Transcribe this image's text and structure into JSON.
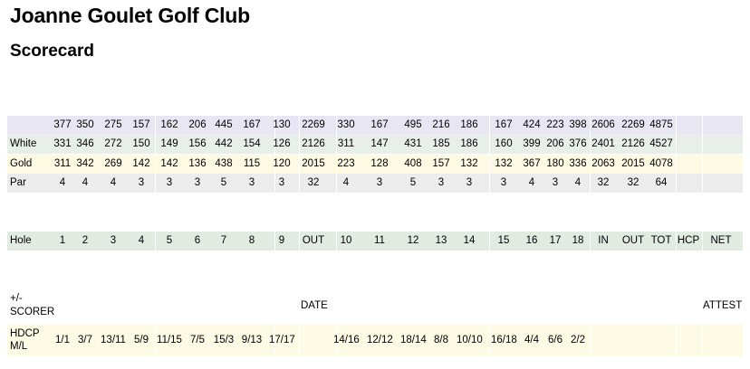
{
  "header": {
    "title": "Joanne Goulet Golf Club",
    "subtitle": "Scorecard"
  },
  "columns": [
    "1",
    "2",
    "3",
    "4",
    "5",
    "6",
    "7",
    "8",
    "9",
    "OUT",
    "10",
    "11",
    "12",
    "13",
    "14",
    "15",
    "16",
    "17",
    "18",
    "IN",
    "OUT",
    "TOT",
    "HCP",
    "NET"
  ],
  "rows": {
    "blue": {
      "label": "",
      "cells": [
        "377",
        "350",
        "275",
        "157",
        "162",
        "206",
        "445",
        "167",
        "130",
        "2269",
        "330",
        "167",
        "495",
        "216",
        "186",
        "167",
        "424",
        "223",
        "398",
        "2606",
        "2269",
        "4875",
        "",
        ""
      ]
    },
    "white": {
      "label": "White",
      "cells": [
        "331",
        "346",
        "272",
        "150",
        "149",
        "156",
        "442",
        "154",
        "126",
        "2126",
        "311",
        "147",
        "431",
        "185",
        "186",
        "160",
        "399",
        "206",
        "376",
        "2401",
        "2126",
        "4527",
        "",
        ""
      ]
    },
    "gold": {
      "label": "Gold",
      "cells": [
        "311",
        "342",
        "269",
        "142",
        "142",
        "136",
        "438",
        "115",
        "120",
        "2015",
        "223",
        "128",
        "408",
        "157",
        "132",
        "132",
        "367",
        "180",
        "336",
        "2063",
        "2015",
        "4078",
        "",
        ""
      ]
    },
    "par": {
      "label": "Par",
      "cells": [
        "4",
        "4",
        "4",
        "3",
        "3",
        "3",
        "5",
        "3",
        "3",
        "32",
        "4",
        "3",
        "5",
        "3",
        "3",
        "3",
        "4",
        "3",
        "4",
        "32",
        "32",
        "64",
        "",
        ""
      ]
    },
    "hole": {
      "label": "Hole",
      "cells": [
        "1",
        "2",
        "3",
        "4",
        "5",
        "6",
        "7",
        "8",
        "9",
        "OUT",
        "10",
        "11",
        "12",
        "13",
        "14",
        "15",
        "16",
        "17",
        "18",
        "IN",
        "OUT",
        "TOT",
        "HCP",
        "NET"
      ]
    },
    "hdcp": {
      "label_line1": "HDCP",
      "label_line2": "M/L",
      "cells": [
        "1/1",
        "3/7",
        "13/11",
        "5/9",
        "11/15",
        "7/5",
        "15/3",
        "9/13",
        "17/17",
        "",
        "14/16",
        "12/12",
        "18/14",
        "8/8",
        "10/10",
        "16/18",
        "4/4",
        "6/6",
        "2/2",
        "",
        "",
        "",
        "",
        ""
      ]
    }
  },
  "scorer": {
    "line1": "+/-",
    "line2": "SCORER"
  },
  "date_label": "DATE",
  "attest_label": "ATTEST"
}
